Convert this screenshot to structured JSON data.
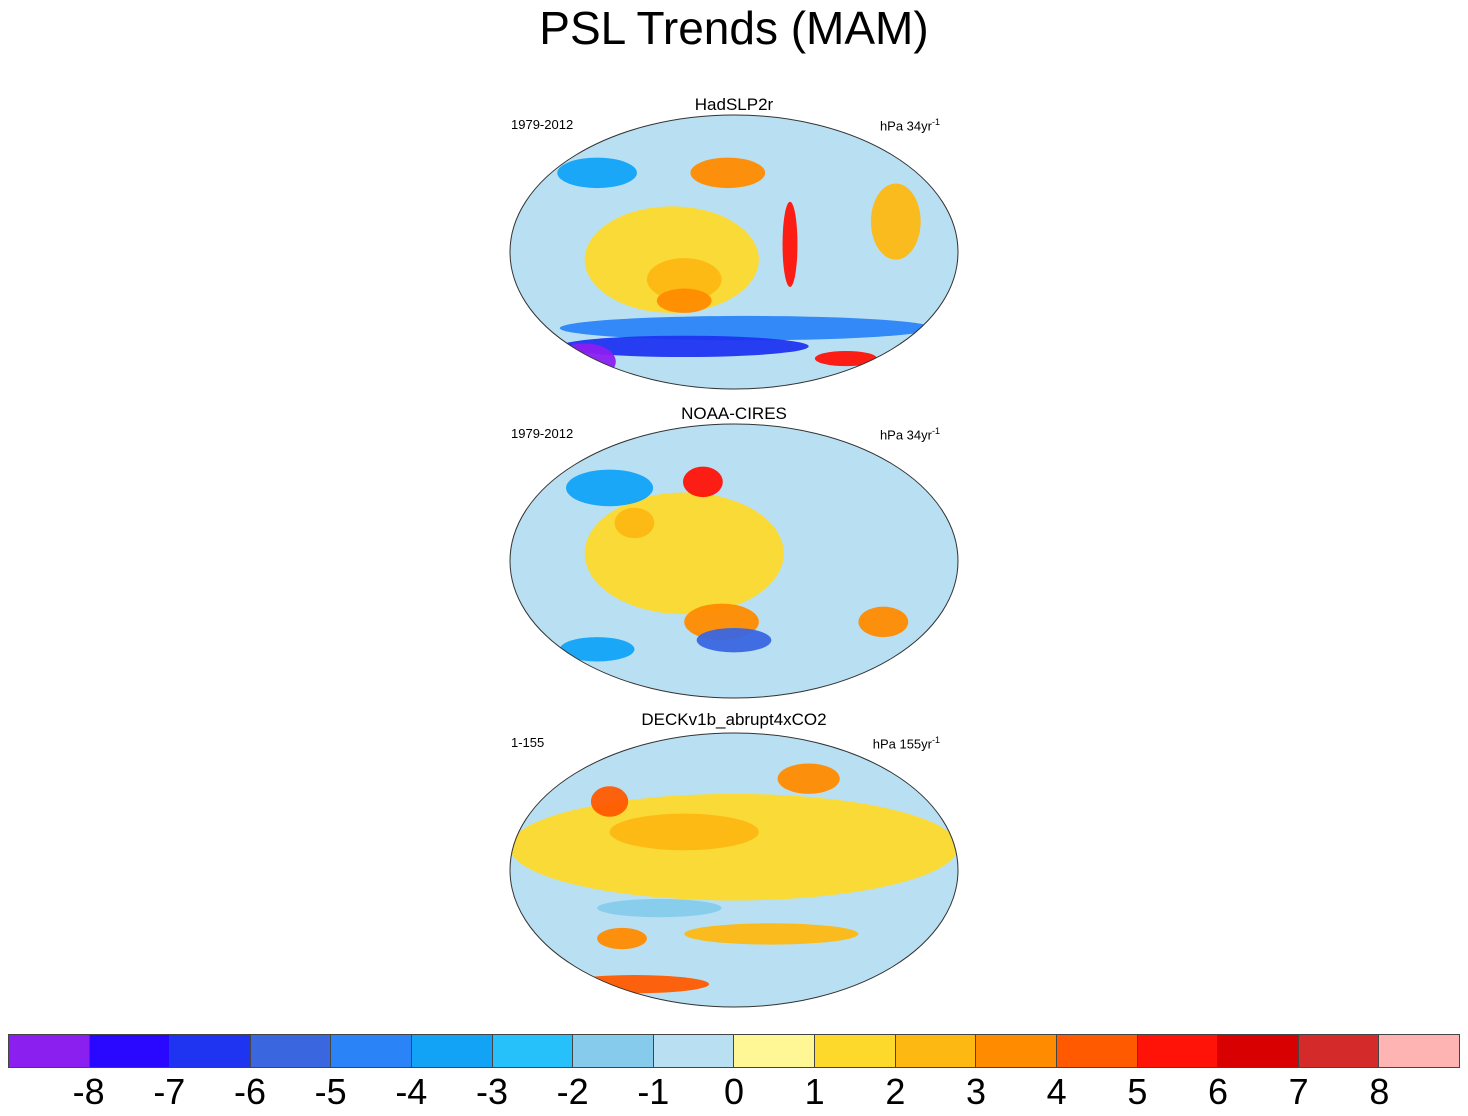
{
  "title": "PSL Trends (MAM)",
  "panels": [
    {
      "name": "HadSLP2r",
      "period": "1979-2012",
      "units": "hPa 34yr",
      "units_sup": "-1",
      "blobs": [
        {
          "lon": -50,
          "lat": -5,
          "rx": 70,
          "ry": 35,
          "level": 1
        },
        {
          "lon": -40,
          "lat": -18,
          "rx": 30,
          "ry": 14,
          "level": 2
        },
        {
          "lon": -40,
          "lat": -32,
          "rx": 22,
          "ry": 8,
          "level": 3
        },
        {
          "lon": -5,
          "lat": 52,
          "rx": 30,
          "ry": 10,
          "level": 3
        },
        {
          "lon": -110,
          "lat": 52,
          "rx": 32,
          "ry": 10,
          "level": -3
        },
        {
          "lon": 10,
          "lat": -50,
          "rx": 150,
          "ry": 8,
          "level": -4
        },
        {
          "lon": -40,
          "lat": -62,
          "rx": 100,
          "ry": 7,
          "level": -6
        },
        {
          "lon": -120,
          "lat": -72,
          "rx": 25,
          "ry": 12,
          "level": -8
        },
        {
          "lon": 45,
          "lat": 5,
          "rx": 6,
          "ry": 28,
          "level": 5
        },
        {
          "lon": 130,
          "lat": 20,
          "rx": 20,
          "ry": 25,
          "level": 2
        },
        {
          "lon": 90,
          "lat": -70,
          "rx": 25,
          "ry": 5,
          "level": 5
        }
      ]
    },
    {
      "name": "NOAA-CIRES",
      "period": "1979-2012",
      "units": "hPa 34yr",
      "units_sup": "-1",
      "blobs": [
        {
          "lon": -40,
          "lat": 5,
          "rx": 80,
          "ry": 40,
          "level": 1
        },
        {
          "lon": -10,
          "lat": -40,
          "rx": 30,
          "ry": 12,
          "level": 3
        },
        {
          "lon": -25,
          "lat": 52,
          "rx": 16,
          "ry": 10,
          "level": 5
        },
        {
          "lon": 0,
          "lat": -52,
          "rx": 30,
          "ry": 8,
          "level": -5
        },
        {
          "lon": -100,
          "lat": 48,
          "rx": 35,
          "ry": 12,
          "level": -3
        },
        {
          "lon": 120,
          "lat": -40,
          "rx": 20,
          "ry": 10,
          "level": 3
        },
        {
          "lon": -80,
          "lat": 25,
          "rx": 16,
          "ry": 10,
          "level": 2
        },
        {
          "lon": -110,
          "lat": -58,
          "rx": 30,
          "ry": 8,
          "level": -3
        }
      ]
    },
    {
      "name": "DECKv1b_abrupt4xCO2",
      "period": "1-155",
      "units": "hPa 155yr",
      "units_sup": "-1",
      "blobs": [
        {
          "lon": 0,
          "lat": 15,
          "rx": 180,
          "ry": 35,
          "level": 1
        },
        {
          "lon": -40,
          "lat": 25,
          "rx": 60,
          "ry": 12,
          "level": 2
        },
        {
          "lon": -100,
          "lat": 45,
          "rx": 15,
          "ry": 10,
          "level": 4
        },
        {
          "lon": 60,
          "lat": 60,
          "rx": 25,
          "ry": 10,
          "level": 3
        },
        {
          "lon": 30,
          "lat": -42,
          "rx": 70,
          "ry": 7,
          "level": 2
        },
        {
          "lon": -90,
          "lat": -45,
          "rx": 20,
          "ry": 7,
          "level": 3
        },
        {
          "lon": -80,
          "lat": -75,
          "rx": 60,
          "ry": 6,
          "level": 4
        },
        {
          "lon": -60,
          "lat": -25,
          "rx": 50,
          "ry": 6,
          "level": -1
        }
      ]
    }
  ],
  "colorbar": {
    "colors": [
      "#8a1ff0",
      "#2a08ff",
      "#1e34f0",
      "#3a66e0",
      "#2a84f7",
      "#12a3f7",
      "#26c0fa",
      "#86cbec",
      "#b9e0f2",
      "#fff696",
      "#fdd92c",
      "#fdb812",
      "#ff8b00",
      "#ff5a00",
      "#ff1208",
      "#d80000",
      "#d52a2a",
      "#ffb4b4"
    ],
    "labels": [
      "-8",
      "-7",
      "-6",
      "-5",
      "-4",
      "-3",
      "-2",
      "-1",
      "0",
      "1",
      "2",
      "3",
      "4",
      "5",
      "6",
      "7",
      "8"
    ]
  }
}
